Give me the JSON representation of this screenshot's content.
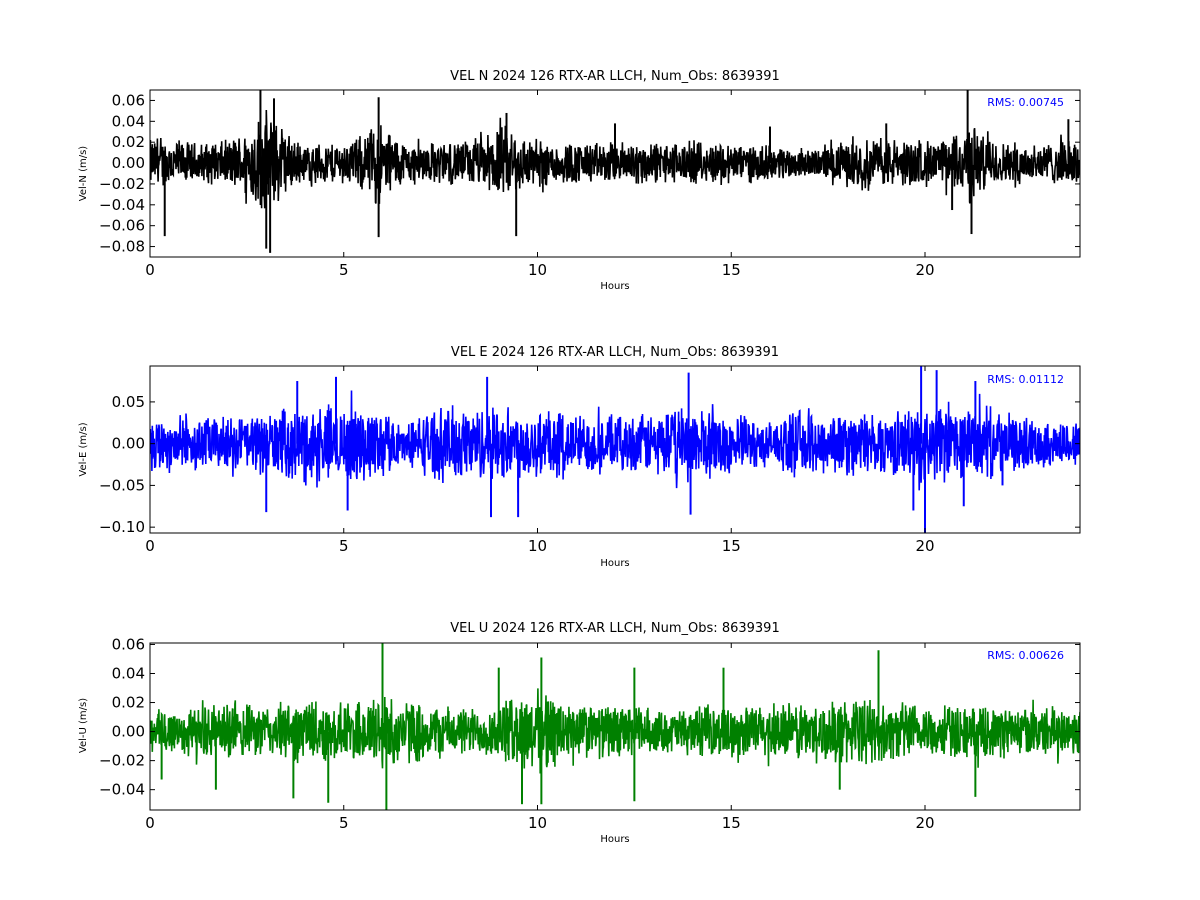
{
  "chart_data": [
    {
      "type": "line",
      "title": "VEL N 2024 126 RTX-AR  LLCH, Num_Obs: 8639391",
      "xlabel": "Hours",
      "ylabel": "Vel-N (m/s)",
      "xlim": [
        0,
        24
      ],
      "ylim": [
        -0.09,
        0.07
      ],
      "xticks": [
        0,
        5,
        10,
        15,
        20
      ],
      "xtick_labels": [
        "0",
        "5",
        "10",
        "15",
        "20"
      ],
      "yticks": [
        0.06,
        0.04,
        0.02,
        0.0,
        -0.02,
        -0.04,
        -0.06,
        -0.08
      ],
      "ytick_labels": [
        "0.06",
        "0.04",
        "0.02",
        "0.00",
        "−0.02",
        "−0.04",
        "−0.06",
        "−0.08"
      ],
      "annotation": "RMS:  0.00745",
      "annotation_color": "#0000ff",
      "series": [
        {
          "color": "#000000",
          "envelope": {
            "x": [
              0,
              0.5,
              1,
              1.5,
              2,
              2.5,
              2.8,
              3.0,
              3.3,
              3.6,
              4.0,
              4.5,
              5.0,
              5.5,
              5.9,
              6.2,
              6.6,
              7.0,
              7.5,
              8.0,
              8.5,
              9.0,
              9.3,
              9.6,
              10.0,
              10.5,
              11,
              11.5,
              12,
              12.5,
              13,
              13.5,
              14,
              14.5,
              15,
              15.5,
              16,
              16.5,
              17,
              17.5,
              18,
              18.5,
              19,
              19.5,
              20,
              20.5,
              21,
              21.2,
              21.5,
              22,
              22.5,
              23,
              23.5,
              24
            ],
            "y": [
              0.026,
              0.027,
              0.022,
              0.022,
              0.024,
              0.035,
              0.05,
              0.055,
              0.045,
              0.03,
              0.02,
              0.022,
              0.022,
              0.03,
              0.045,
              0.035,
              0.022,
              0.022,
              0.022,
              0.024,
              0.025,
              0.038,
              0.04,
              0.03,
              0.025,
              0.024,
              0.022,
              0.022,
              0.022,
              0.024,
              0.022,
              0.022,
              0.022,
              0.022,
              0.022,
              0.02,
              0.018,
              0.018,
              0.014,
              0.018,
              0.024,
              0.026,
              0.027,
              0.025,
              0.024,
              0.024,
              0.035,
              0.045,
              0.03,
              0.022,
              0.022,
              0.022,
              0.022,
              0.026
            ]
          },
          "spikes": [
            {
              "x": 0.38,
              "y": -0.07
            },
            {
              "x": 2.85,
              "y": 0.073
            },
            {
              "x": 3.1,
              "y": -0.086
            },
            {
              "x": 3.0,
              "y": -0.082
            },
            {
              "x": 3.2,
              "y": 0.062
            },
            {
              "x": 5.9,
              "y": 0.063
            },
            {
              "x": 5.9,
              "y": -0.071
            },
            {
              "x": 9.45,
              "y": -0.07
            },
            {
              "x": 9.2,
              "y": 0.048
            },
            {
              "x": 12.0,
              "y": 0.038
            },
            {
              "x": 16.0,
              "y": 0.035
            },
            {
              "x": 19.0,
              "y": 0.038
            },
            {
              "x": 21.1,
              "y": 0.07
            },
            {
              "x": 21.2,
              "y": -0.068
            },
            {
              "x": 20.7,
              "y": -0.045
            },
            {
              "x": 23.7,
              "y": 0.042
            }
          ]
        }
      ]
    },
    {
      "type": "line",
      "title": "VEL E 2024 126 RTX-AR  LLCH, Num_Obs: 8639391",
      "xlabel": "Hours",
      "ylabel": "Vel-E (m/s)",
      "xlim": [
        0,
        24
      ],
      "ylim": [
        -0.107,
        0.093
      ],
      "xticks": [
        0,
        5,
        10,
        15,
        20
      ],
      "xtick_labels": [
        "0",
        "5",
        "10",
        "15",
        "20"
      ],
      "yticks": [
        0.05,
        0.0,
        -0.05,
        -0.1
      ],
      "ytick_labels": [
        "0.05",
        "0.00",
        "−0.05",
        "−0.10"
      ],
      "annotation": "RMS:  0.01112",
      "annotation_color": "#0000ff",
      "series": [
        {
          "color": "#0000ff",
          "envelope": {
            "x": [
              0,
              0.5,
              1,
              1.5,
              2,
              2.5,
              3,
              3.5,
              4,
              4.5,
              5,
              5.5,
              6,
              6.3,
              6.5,
              7,
              7.5,
              8,
              8.5,
              9,
              9.5,
              10,
              10.5,
              11,
              11.5,
              12,
              12.5,
              13,
              13.5,
              14,
              14.5,
              15,
              15.5,
              16,
              16.5,
              17,
              17.5,
              18,
              18.5,
              19,
              19.5,
              20,
              20.5,
              21,
              21.5,
              22,
              22.5,
              23,
              23.5,
              24
            ],
            "y": [
              0.035,
              0.038,
              0.035,
              0.035,
              0.035,
              0.038,
              0.04,
              0.045,
              0.048,
              0.048,
              0.05,
              0.05,
              0.045,
              0.035,
              0.022,
              0.04,
              0.048,
              0.05,
              0.048,
              0.048,
              0.048,
              0.048,
              0.045,
              0.04,
              0.038,
              0.035,
              0.038,
              0.04,
              0.045,
              0.05,
              0.045,
              0.04,
              0.035,
              0.028,
              0.04,
              0.045,
              0.042,
              0.04,
              0.042,
              0.04,
              0.045,
              0.05,
              0.048,
              0.045,
              0.05,
              0.04,
              0.035,
              0.032,
              0.03,
              0.03
            ]
          },
          "spikes": [
            {
              "x": 3.0,
              "y": -0.082
            },
            {
              "x": 3.8,
              "y": 0.075
            },
            {
              "x": 4.8,
              "y": 0.08
            },
            {
              "x": 5.1,
              "y": -0.08
            },
            {
              "x": 8.8,
              "y": -0.088
            },
            {
              "x": 8.7,
              "y": 0.08
            },
            {
              "x": 9.5,
              "y": -0.088
            },
            {
              "x": 13.9,
              "y": 0.085
            },
            {
              "x": 13.95,
              "y": -0.085
            },
            {
              "x": 19.9,
              "y": 0.093
            },
            {
              "x": 20.0,
              "y": -0.107
            },
            {
              "x": 20.3,
              "y": 0.088
            },
            {
              "x": 19.7,
              "y": -0.08
            },
            {
              "x": 21.0,
              "y": -0.075
            },
            {
              "x": 21.3,
              "y": 0.075
            },
            {
              "x": 22.0,
              "y": -0.05
            }
          ]
        }
      ]
    },
    {
      "type": "line",
      "title": "VEL U 2024 126 RTX-AR  LLCH, Num_Obs: 8639391",
      "xlabel": "Hours",
      "ylabel": "Vel-U (m/s)",
      "xlim": [
        0,
        24
      ],
      "ylim": [
        -0.054,
        0.061
      ],
      "xticks": [
        0,
        5,
        10,
        15,
        20
      ],
      "xtick_labels": [
        "0",
        "5",
        "10",
        "15",
        "20"
      ],
      "yticks": [
        0.06,
        0.04,
        0.02,
        0.0,
        -0.02,
        -0.04
      ],
      "ytick_labels": [
        "0.06",
        "0.04",
        "0.02",
        "0.00",
        "−0.02",
        "−0.04"
      ],
      "annotation": "RMS:  0.00626",
      "annotation_color": "#0000ff",
      "series": [
        {
          "color": "#008000",
          "envelope": {
            "x": [
              0,
              0.5,
              1,
              1.5,
              2,
              2.5,
              3,
              3.5,
              4,
              4.5,
              5,
              5.5,
              6,
              6.5,
              7,
              7.5,
              8,
              8.5,
              9,
              9.5,
              10,
              10.3,
              10.6,
              11,
              11.5,
              12,
              12.5,
              13,
              13.5,
              14,
              14.5,
              15,
              15.5,
              16,
              16.5,
              17,
              17.5,
              18,
              18.5,
              19,
              19.5,
              20,
              20.5,
              21,
              21.5,
              22,
              22.5,
              23,
              23.5,
              24
            ],
            "y": [
              0.018,
              0.02,
              0.018,
              0.02,
              0.022,
              0.02,
              0.02,
              0.022,
              0.025,
              0.022,
              0.022,
              0.025,
              0.03,
              0.025,
              0.022,
              0.02,
              0.018,
              0.018,
              0.022,
              0.028,
              0.032,
              0.03,
              0.025,
              0.022,
              0.02,
              0.02,
              0.02,
              0.016,
              0.016,
              0.018,
              0.02,
              0.018,
              0.02,
              0.02,
              0.022,
              0.022,
              0.022,
              0.025,
              0.025,
              0.022,
              0.022,
              0.02,
              0.02,
              0.02,
              0.018,
              0.02,
              0.018,
              0.018,
              0.018,
              0.02
            ]
          },
          "spikes": [
            {
              "x": 0.3,
              "y": -0.033
            },
            {
              "x": 1.7,
              "y": -0.04
            },
            {
              "x": 3.7,
              "y": -0.046
            },
            {
              "x": 4.6,
              "y": -0.049
            },
            {
              "x": 6.0,
              "y": 0.061
            },
            {
              "x": 6.1,
              "y": -0.054
            },
            {
              "x": 9.0,
              "y": 0.044
            },
            {
              "x": 9.6,
              "y": -0.05
            },
            {
              "x": 10.1,
              "y": 0.051
            },
            {
              "x": 10.1,
              "y": -0.05
            },
            {
              "x": 12.5,
              "y": 0.044
            },
            {
              "x": 12.5,
              "y": -0.048
            },
            {
              "x": 14.8,
              "y": 0.044
            },
            {
              "x": 18.8,
              "y": 0.056
            },
            {
              "x": 21.3,
              "y": -0.045
            },
            {
              "x": 17.8,
              "y": -0.04
            }
          ]
        }
      ]
    }
  ]
}
